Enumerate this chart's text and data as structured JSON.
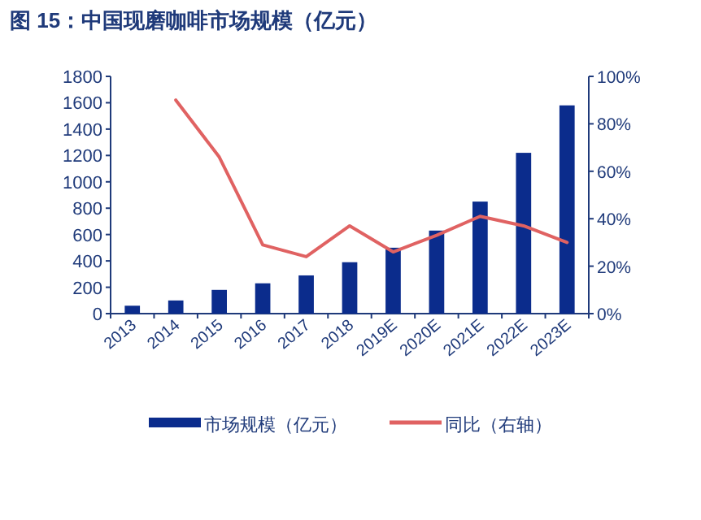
{
  "chart_data": {
    "type": "bar",
    "title": "图 15：中国现磨咖啡市场规模（亿元）",
    "categories": [
      "2013",
      "2014",
      "2015",
      "2016",
      "2017",
      "2018",
      "2019E",
      "2020E",
      "2021E",
      "2022E",
      "2023E"
    ],
    "series": [
      {
        "name": "市场规模（亿元）",
        "color": "#0b2c8c",
        "values": [
          60,
          100,
          180,
          230,
          290,
          390,
          500,
          630,
          850,
          1220,
          1580
        ]
      },
      {
        "name": "同比（右轴）",
        "type": "line",
        "axis": "y2",
        "color": "#e06262",
        "values": [
          null,
          90,
          66,
          29,
          24,
          37,
          26,
          33,
          41,
          37,
          30
        ]
      }
    ],
    "ylim": [
      0,
      1800
    ],
    "yticks": [
      0,
      200,
      400,
      600,
      800,
      1000,
      1200,
      1400,
      1600,
      1800
    ],
    "y2lim": [
      0,
      100
    ],
    "y2ticks": [
      {
        "value": 0,
        "label": "0%"
      },
      {
        "value": 20,
        "label": "20%"
      },
      {
        "value": 40,
        "label": "40%"
      },
      {
        "value": 60,
        "label": "60%"
      },
      {
        "value": 80,
        "label": "80%"
      },
      {
        "value": 100,
        "label": "100%"
      }
    ],
    "grid": false,
    "legend": "bottom"
  }
}
